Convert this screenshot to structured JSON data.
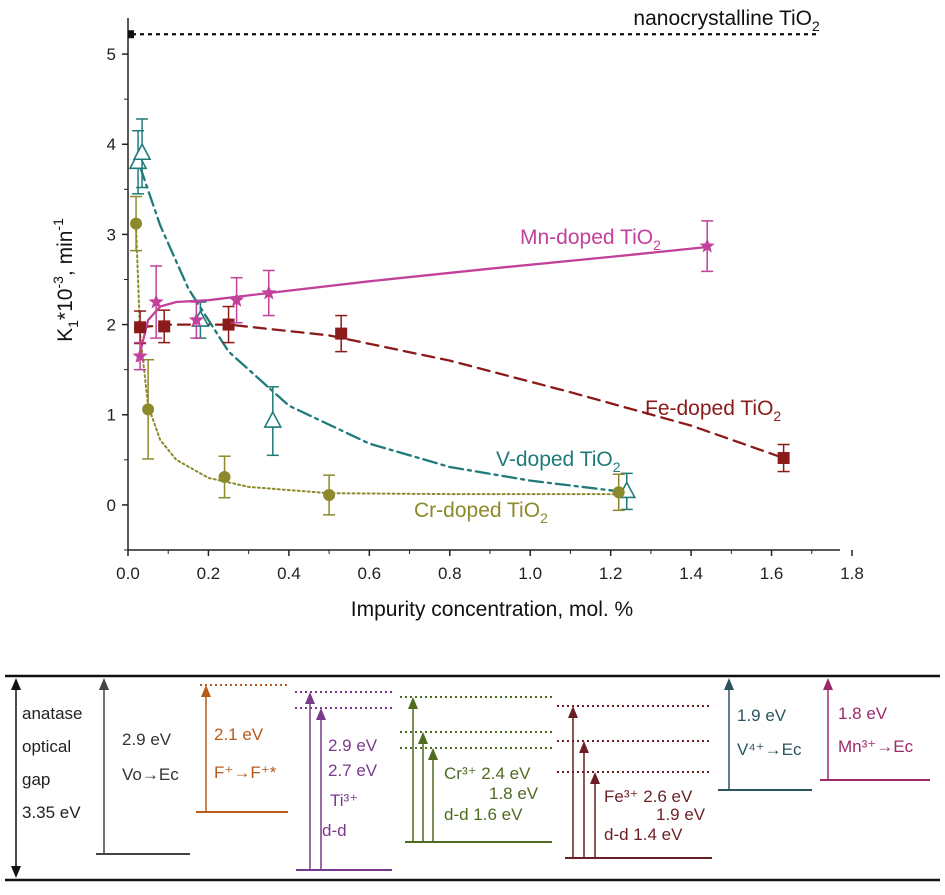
{
  "chart_data": {
    "type": "scatter",
    "title": "",
    "xlabel": "Impurity concentration, mol. %",
    "ylabel_parts": {
      "k": "K",
      "k_sub": "1",
      "mult": "*10",
      "exp": "-3",
      "unit": ", min",
      "unit_exp": "-1"
    },
    "xlim": [
      0,
      1.8
    ],
    "ylim": [
      -0.5,
      5.4
    ],
    "xticks": [
      "0.0",
      "0.2",
      "0.4",
      "0.6",
      "0.8",
      "1.0",
      "1.2",
      "1.4",
      "1.6",
      "1.8"
    ],
    "yticks": [
      "0",
      "1",
      "2",
      "3",
      "4",
      "5"
    ],
    "reference": {
      "name": "nanocrystalline TiO",
      "sub": "2",
      "value": 5.22,
      "color": "#111111"
    },
    "series": [
      {
        "name": "Mn-doped TiO",
        "sub": "2",
        "color": "#c2419b",
        "marker": "star",
        "line": "solid",
        "x": [
          0.03,
          0.07,
          0.17,
          0.27,
          0.35,
          1.44
        ],
        "y": [
          1.65,
          2.25,
          2.05,
          2.27,
          2.35,
          2.87
        ],
        "err": [
          0.15,
          0.4,
          0.2,
          0.25,
          0.25,
          0.28
        ],
        "fit_x": [
          0.025,
          0.05,
          0.08,
          0.12,
          0.2,
          0.35,
          0.6,
          0.9,
          1.2,
          1.44
        ],
        "fit_y": [
          1.6,
          2.05,
          2.2,
          2.25,
          2.27,
          2.35,
          2.48,
          2.62,
          2.75,
          2.86
        ]
      },
      {
        "name": "Fe-doped TiO",
        "sub": "2",
        "color": "#8b1a1a",
        "marker": "square",
        "line": "dashed",
        "x": [
          0.03,
          0.09,
          0.25,
          0.53,
          1.63
        ],
        "y": [
          1.97,
          1.98,
          2.0,
          1.9,
          0.52
        ],
        "err": [
          0.18,
          0.18,
          0.2,
          0.2,
          0.15
        ],
        "fit_x": [
          0.03,
          0.1,
          0.25,
          0.5,
          0.8,
          1.1,
          1.4,
          1.63
        ],
        "fit_y": [
          1.97,
          2.0,
          2.0,
          1.88,
          1.6,
          1.25,
          0.88,
          0.52
        ]
      },
      {
        "name": "V-doped TiO",
        "sub": "2",
        "color": "#1f7a7a",
        "marker": "triangle-open",
        "line": "dashdot",
        "x": [
          0.025,
          0.035,
          0.18,
          0.36,
          1.24
        ],
        "y": [
          3.8,
          3.9,
          2.05,
          0.93,
          0.15
        ],
        "err": [
          0.35,
          0.38,
          0.2,
          0.38,
          0.2
        ],
        "fit_x": [
          0.03,
          0.08,
          0.15,
          0.25,
          0.4,
          0.6,
          0.8,
          1.0,
          1.24
        ],
        "fit_y": [
          3.75,
          3.1,
          2.4,
          1.7,
          1.1,
          0.68,
          0.42,
          0.27,
          0.14
        ]
      },
      {
        "name": "Cr-doped TiO",
        "sub": "2",
        "color": "#8c8a2a",
        "marker": "circle",
        "line": "dotted",
        "x": [
          0.02,
          0.05,
          0.24,
          0.5,
          1.22
        ],
        "y": [
          3.12,
          1.06,
          0.31,
          0.11,
          0.14
        ],
        "err": [
          0.3,
          0.55,
          0.23,
          0.22,
          0.2
        ],
        "fit_x": [
          0.02,
          0.03,
          0.05,
          0.08,
          0.12,
          0.2,
          0.3,
          0.5,
          0.8,
          1.22
        ],
        "fit_y": [
          3.1,
          1.9,
          1.1,
          0.72,
          0.5,
          0.3,
          0.2,
          0.13,
          0.12,
          0.12
        ]
      }
    ]
  },
  "energy_diagram": {
    "gap_label": [
      "anatase",
      "optical",
      "gap",
      "3.35 eV"
    ],
    "groups": [
      {
        "id": "vo",
        "color": "#444444",
        "lines": [
          "2.9 eV",
          "Vo→Ec"
        ]
      },
      {
        "id": "f",
        "color": "#b85a1a",
        "lines": [
          "2.1 eV",
          "F⁺→F⁺*"
        ]
      },
      {
        "id": "ti",
        "color": "#7a3a8c",
        "lines": [
          "2.9 eV",
          "2.7 eV",
          "Ti³⁺",
          "d-d"
        ]
      },
      {
        "id": "cr",
        "color": "#4f6b1f",
        "lines": [
          "Cr³⁺ 2.4 eV",
          "1.8 eV",
          "d-d  1.6 eV"
        ]
      },
      {
        "id": "fe",
        "color": "#6b1f24",
        "lines": [
          "Fe³⁺ 2.6 eV",
          "1.9 eV",
          "d-d  1.4 eV"
        ]
      },
      {
        "id": "v",
        "color": "#2a5560",
        "lines": [
          "1.9 eV",
          "V⁴⁺→Ec"
        ]
      },
      {
        "id": "mn",
        "color": "#9c2a6a",
        "lines": [
          "1.8 eV",
          "Mn³⁺→Ec"
        ]
      }
    ]
  }
}
